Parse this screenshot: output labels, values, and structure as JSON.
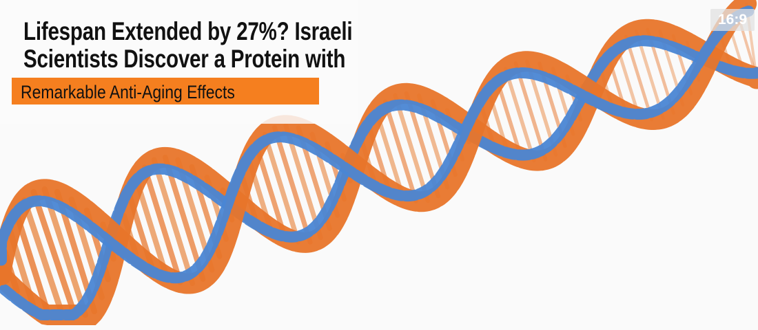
{
  "headline": {
    "line1": "Lifespan Extended by 27%? Israeli",
    "line2": "Scientists Discover a Protein with",
    "highlight": "Remarkable Anti-Aging Effects"
  },
  "aspect_badge": "16:9",
  "image": {
    "subject": "dna-double-helix-illustration"
  },
  "colors": {
    "accent": "#f57f1f",
    "strand_orange": "#e8752a",
    "strand_blue": "#4a86d4",
    "text": "#111111"
  }
}
